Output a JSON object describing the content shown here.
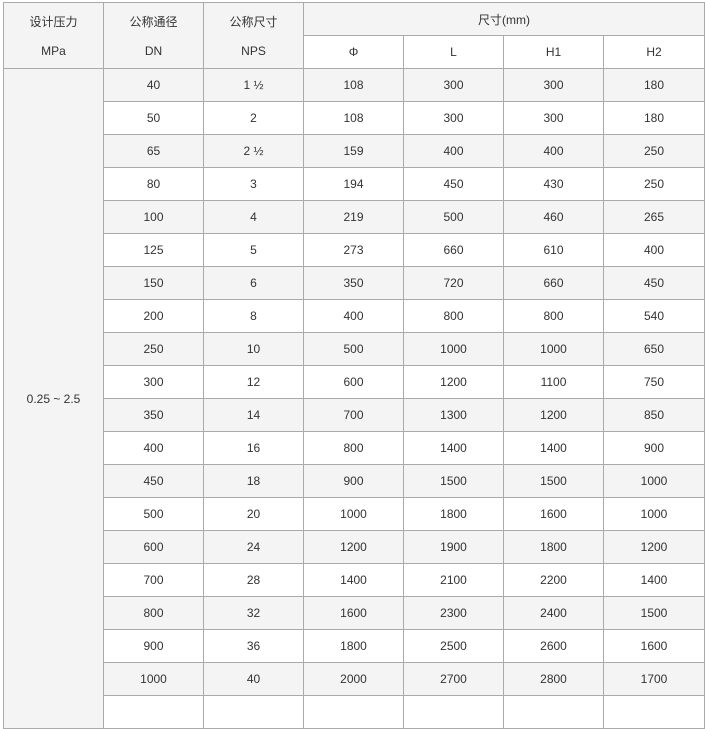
{
  "headers": {
    "pressure": "设计压力",
    "pressure_unit": "MPa",
    "dn": "公称通径",
    "dn_unit": "DN",
    "nps": "公称尺寸",
    "nps_unit": "NPS",
    "dimensions": "尺寸(mm)",
    "phi": "Φ",
    "l": "L",
    "h1": "H1",
    "h2": "H2"
  },
  "pressure_value": "0.25 ~ 2.5",
  "rows": [
    [
      "40",
      "1 ½",
      "108",
      "300",
      "300",
      "180"
    ],
    [
      "50",
      "2",
      "108",
      "300",
      "300",
      "180"
    ],
    [
      "65",
      "2 ½",
      "159",
      "400",
      "400",
      "250"
    ],
    [
      "80",
      "3",
      "194",
      "450",
      "430",
      "250"
    ],
    [
      "100",
      "4",
      "219",
      "500",
      "460",
      "265"
    ],
    [
      "125",
      "5",
      "273",
      "660",
      "610",
      "400"
    ],
    [
      "150",
      "6",
      "350",
      "720",
      "660",
      "450"
    ],
    [
      "200",
      "8",
      "400",
      "800",
      "800",
      "540"
    ],
    [
      "250",
      "10",
      "500",
      "1000",
      "1000",
      "650"
    ],
    [
      "300",
      "12",
      "600",
      "1200",
      "1100",
      "750"
    ],
    [
      "350",
      "14",
      "700",
      "1300",
      "1200",
      "850"
    ],
    [
      "400",
      "16",
      "800",
      "1400",
      "1400",
      "900"
    ],
    [
      "450",
      "18",
      "900",
      "1500",
      "1500",
      "1000"
    ],
    [
      "500",
      "20",
      "1000",
      "1800",
      "1600",
      "1000"
    ],
    [
      "600",
      "24",
      "1200",
      "1900",
      "1800",
      "1200"
    ],
    [
      "700",
      "28",
      "1400",
      "2100",
      "2200",
      "1400"
    ],
    [
      "800",
      "32",
      "1600",
      "2300",
      "2400",
      "1500"
    ],
    [
      "900",
      "36",
      "1800",
      "2500",
      "2600",
      "1600"
    ],
    [
      "1000",
      "40",
      "2000",
      "2700",
      "2800",
      "1700"
    ]
  ]
}
